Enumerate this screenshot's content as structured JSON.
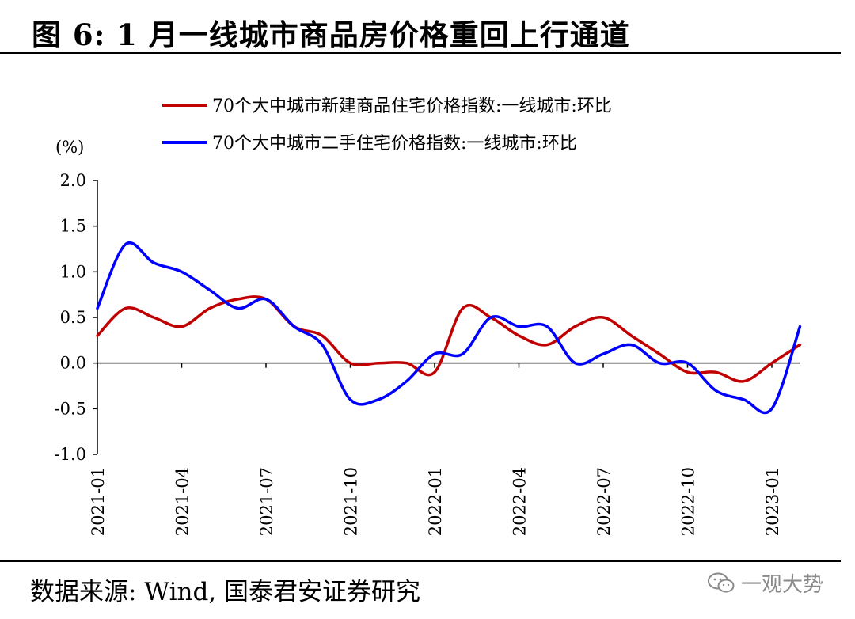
{
  "title": "图 6:  1 月一线城市商品房价格重回上行通道",
  "source": "数据来源:  Wind, 国泰君安证券研究",
  "watermark": "一观大势",
  "chart_data": {
    "type": "line",
    "unit_label": "(%)",
    "ylim": [
      -1.0,
      2.0
    ],
    "y_ticks": [
      2.0,
      1.5,
      1.0,
      0.5,
      0.0,
      -0.5,
      -1.0
    ],
    "y_tick_labels": [
      "2.0",
      "1.5",
      "1.0",
      "0.5",
      "0.0",
      "-0.5",
      "-1.0"
    ],
    "x": [
      "2021-01",
      "2021-02",
      "2021-03",
      "2021-04",
      "2021-05",
      "2021-06",
      "2021-07",
      "2021-08",
      "2021-09",
      "2021-10",
      "2021-11",
      "2021-12",
      "2022-01",
      "2022-02",
      "2022-03",
      "2022-04",
      "2022-05",
      "2022-06",
      "2022-07",
      "2022-08",
      "2022-09",
      "2022-10",
      "2022-11",
      "2022-12",
      "2023-01",
      "2023-02"
    ],
    "x_tick_labels": [
      "2021-01",
      "2021-04",
      "2021-07",
      "2021-10",
      "2022-01",
      "2022-04",
      "2022-07",
      "2022-10",
      "2023-01"
    ],
    "series": [
      {
        "name": "70个大中城市新建商品住宅价格指数:一线城市:环比",
        "color": "#c00000",
        "values": [
          0.3,
          0.6,
          0.5,
          0.4,
          0.6,
          0.7,
          0.7,
          0.4,
          0.3,
          0.0,
          0.0,
          0.0,
          -0.1,
          0.6,
          0.5,
          0.3,
          0.2,
          0.4,
          0.5,
          0.3,
          0.1,
          -0.1,
          -0.1,
          -0.2,
          0.0,
          0.2
        ]
      },
      {
        "name": "70个大中城市二手住宅价格指数:一线城市:环比",
        "color": "#0000ff",
        "values": [
          0.6,
          1.3,
          1.1,
          1.0,
          0.8,
          0.6,
          0.7,
          0.4,
          0.2,
          -0.4,
          -0.4,
          -0.2,
          0.1,
          0.1,
          0.5,
          0.4,
          0.4,
          0.0,
          0.1,
          0.2,
          0.0,
          0.0,
          -0.3,
          -0.4,
          -0.5,
          0.4
        ]
      }
    ]
  }
}
